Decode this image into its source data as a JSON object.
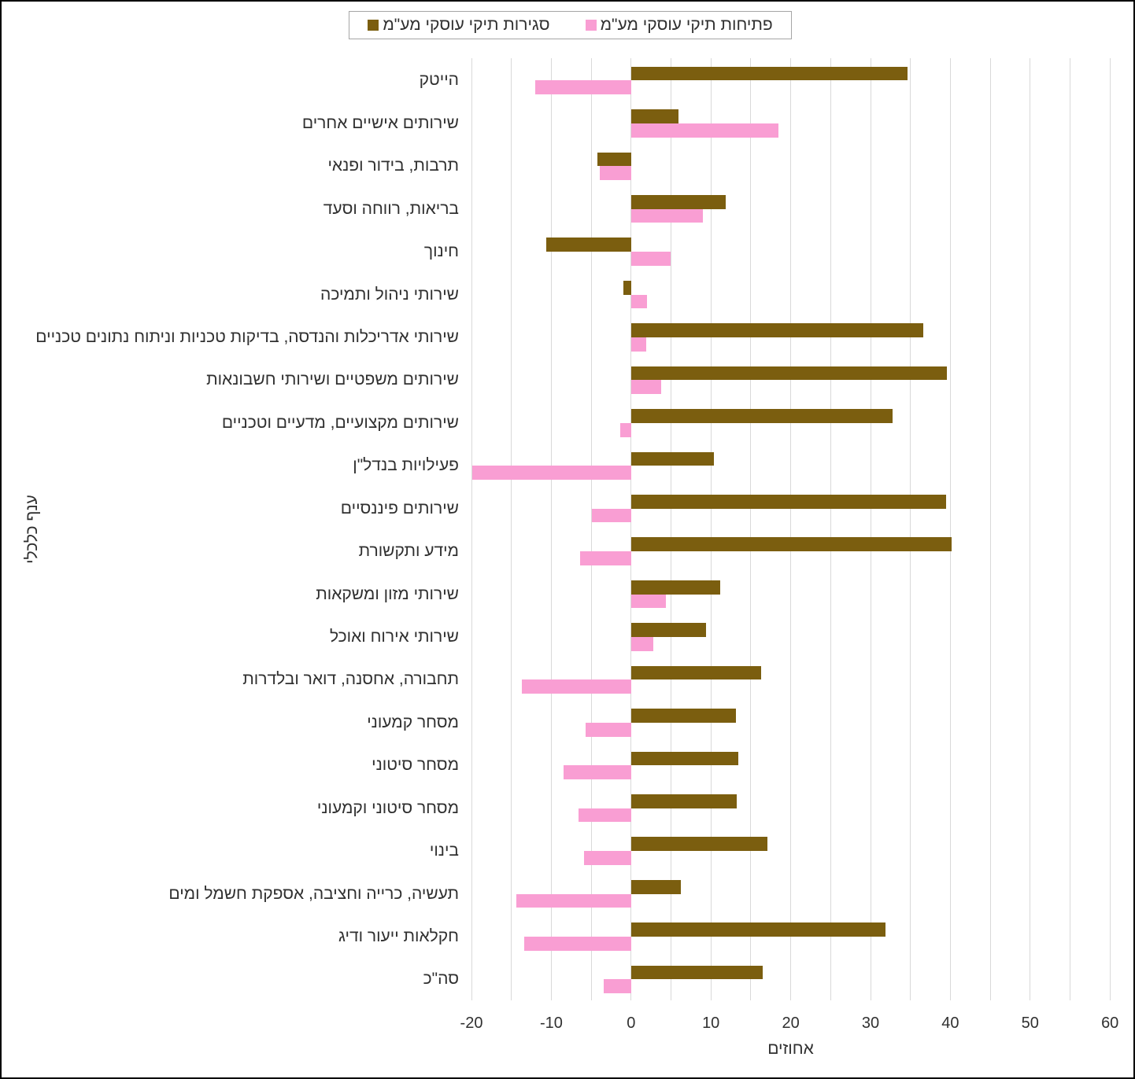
{
  "legend": {
    "items": [
      {
        "id": "openings",
        "label": "פתיחות תיקי עוסקי מע\"מ",
        "color": "#F99ED3"
      },
      {
        "id": "closings",
        "label": "סגירות תיקי עוסקי מע\"מ",
        "color": "#7B5E0F"
      }
    ]
  },
  "chart_data": {
    "type": "bar",
    "orientation": "horizontal",
    "title": "",
    "xlabel": "אחוזים",
    "ylabel": "ענף כלכלי",
    "xlim": [
      -20,
      60
    ],
    "xticks": [
      -20,
      -10,
      0,
      10,
      20,
      30,
      40,
      50,
      60
    ],
    "gridline_step": 5,
    "grid": true,
    "legend_position": "top",
    "grid_color": "#D9D9D9",
    "text_color": "#303030",
    "categories": [
      "הייטק",
      "שירותים אישיים אחרים",
      "תרבות, בידור ופנאי",
      "בריאות, רווחה וסעד",
      "חינוך",
      "שירותי ניהול ותמיכה",
      "שירותי אדריכלות והנדסה, בדיקות טכניות וניתוח נתונים טכניים",
      "שירותים משפטיים ושירותי חשבונאות",
      "שירותים מקצועיים, מדעיים וטכניים",
      "פעילויות בנדל\"ן",
      "שירותים פיננסיים",
      "מידע ותקשורת",
      "שירותי מזון ומשקאות",
      "שירותי אירוח ואוכל",
      "תחבורה, אחסנה, דואר ובלדרות",
      "מסחר קמעוני",
      "מסחר סיטוני",
      "מסחר סיטוני וקמעוני",
      "בינוי",
      "תעשיה, כרייה וחציבה, אספקת חשמל ומים",
      "חקלאות ייעור ודיג",
      "סה\"כ"
    ],
    "series": [
      {
        "name": "סגירות תיקי עוסקי מע\"מ",
        "color": "#7B5E0F",
        "values": [
          34.6,
          5.9,
          -4.2,
          11.9,
          -10.6,
          -1.0,
          36.6,
          39.6,
          32.8,
          10.4,
          39.5,
          40.2,
          11.2,
          9.4,
          16.3,
          13.1,
          13.4,
          13.2,
          17.1,
          6.2,
          31.9,
          16.5
        ]
      },
      {
        "name": "פתיחות תיקי עוסקי מע\"מ",
        "color": "#F99ED3",
        "values": [
          -12.0,
          18.5,
          -3.9,
          9.0,
          5.0,
          2.0,
          1.9,
          3.8,
          -1.4,
          -19.9,
          -4.9,
          -6.4,
          4.4,
          2.8,
          -13.7,
          -5.7,
          -8.5,
          -6.6,
          -5.9,
          -14.4,
          -13.4,
          -3.4
        ]
      }
    ]
  }
}
